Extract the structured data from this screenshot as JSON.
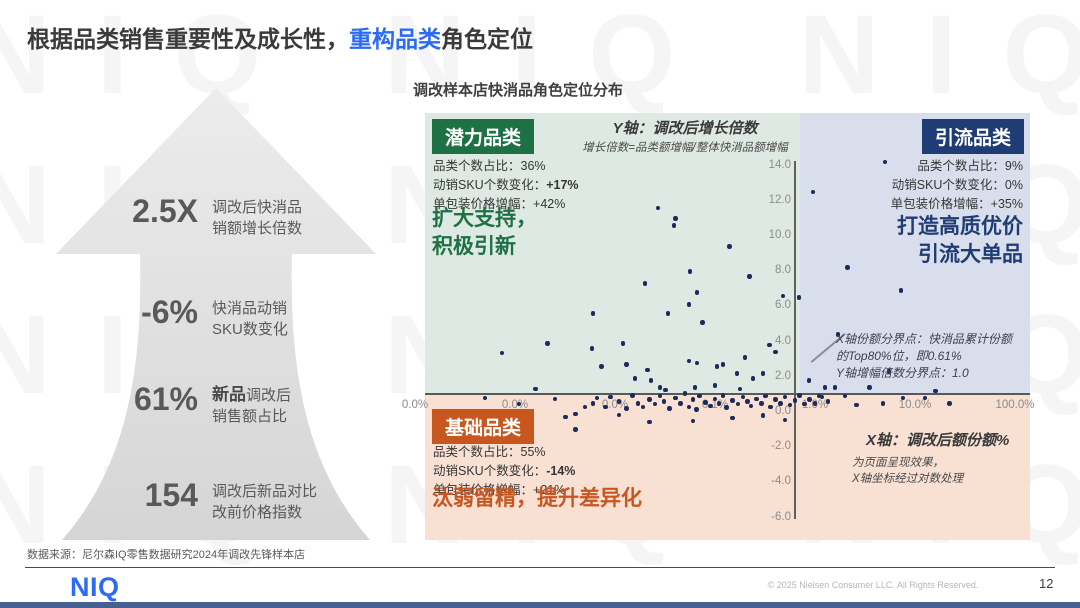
{
  "title": {
    "prefix": "根据品类销售重要性及成长性，",
    "highlight": "重构品类",
    "suffix": "角色定位"
  },
  "watermark_text": "NIQ",
  "accent_blue": "#2a6af5",
  "arrow": {
    "stats": [
      {
        "value": "2.5X",
        "line1_bold": "",
        "line1": "调改后快消品",
        "line2": "销额增长倍数"
      },
      {
        "value": "-6%",
        "line1_bold": "",
        "line1": "快消品动销",
        "line2": "SKU数变化"
      },
      {
        "value": "61%",
        "line1_bold": "新品",
        "line1": "调改后",
        "line2": "销售额占比"
      },
      {
        "value": "154",
        "line1_bold": "",
        "line1": "调改后新品对比",
        "line2": "改前价格指数"
      }
    ]
  },
  "chart": {
    "title": "调改样本店快消品角色定位分布",
    "y_axis_title": "Y轴：调改后增长倍数",
    "y_axis_subtitle": "增长倍数=品类额增幅/整体快消品额增幅",
    "x_axis_title": "X轴：调改后额份额%",
    "x_axis_note_lines": [
      "为页面呈现效果，",
      "X轴坐标经过对数处理"
    ],
    "annotation_lines": [
      "X轴份额分界点：快消品累计份额",
      "的Top80%位，即0.61%",
      "Y轴增幅倍数分界点：1.0"
    ],
    "quadrants": {
      "potential": {
        "name": "潜力品类",
        "color": "#1e7145",
        "stats": [
          {
            "label": "品类个数占比：",
            "value": "36%",
            "bold": false
          },
          {
            "label": "动销SKU个数变化：",
            "value": "+17%",
            "bold": true
          },
          {
            "label": "单包装价格增幅：",
            "value": "+42%",
            "bold": false
          }
        ],
        "statement_lines": [
          "扩大支持，",
          "积极引新"
        ]
      },
      "traffic": {
        "name": "引流品类",
        "color": "#1f3d74",
        "stats": [
          {
            "label": "品类个数占比：",
            "value": "9%",
            "bold": false
          },
          {
            "label": "动销SKU个数变化：",
            "value": "0%",
            "bold": false
          },
          {
            "label": "单包装价格增幅：",
            "value": "+35%",
            "bold": false
          }
        ],
        "statement_lines": [
          "打造高质优价",
          "引流大单品"
        ]
      },
      "basic": {
        "name": "基础品类",
        "color": "#c8571f",
        "stats": [
          {
            "label": "品类个数占比：",
            "value": "55%",
            "bold": false
          },
          {
            "label": "动销SKU个数变化：",
            "value": "-14%",
            "bold": true
          },
          {
            "label": "单包装价格增幅：",
            "value": "+21%",
            "bold": false
          }
        ],
        "statement_lines": [
          "汰弱留精，提升差异化"
        ]
      }
    }
  },
  "chart_data": {
    "type": "scatter",
    "title": "调改样本店快消品角色定位分布",
    "x_axis_label": "X轴：调改后额份额%",
    "y_axis_label": "Y轴：调改后增长倍数",
    "x_scale": "log",
    "x_range_pct": [
      0.0001,
      100
    ],
    "y_range": [
      -6,
      14
    ],
    "x_tick_labels": [
      "0.0%",
      "0.0%",
      "0.0%",
      "0.1%",
      "1.0%",
      "10.0%",
      "100.0%"
    ],
    "y_ticks": [
      14,
      12,
      10,
      8,
      6,
      4,
      2,
      0,
      -2,
      -4,
      -6
    ],
    "dividers": {
      "x_pct": 0.61,
      "y": 1.0
    },
    "dot_color": "#1b2b5c",
    "points": [
      [
        0.027,
        11.6
      ],
      [
        0.04,
        11.0
      ],
      [
        0.039,
        10.6
      ],
      [
        0.14,
        9.4
      ],
      [
        0.056,
        8.0
      ],
      [
        0.02,
        7.3
      ],
      [
        0.22,
        7.7
      ],
      [
        0.066,
        6.8
      ],
      [
        0.48,
        6.6
      ],
      [
        0.69,
        6.5
      ],
      [
        0.055,
        6.1
      ],
      [
        0.006,
        5.6
      ],
      [
        0.034,
        5.6
      ],
      [
        0.075,
        5.1
      ],
      [
        0.35,
        3.8
      ],
      [
        0.4,
        3.4
      ],
      [
        0.012,
        3.9
      ],
      [
        0.0059,
        3.6
      ],
      [
        0.2,
        3.1
      ],
      [
        0.055,
        2.9
      ],
      [
        0.066,
        2.8
      ],
      [
        0.0073,
        2.6
      ],
      [
        0.013,
        2.7
      ],
      [
        0.104,
        2.6
      ],
      [
        0.12,
        2.7
      ],
      [
        0.021,
        2.4
      ],
      [
        0.166,
        2.2
      ],
      [
        0.0158,
        1.9
      ],
      [
        0.023,
        1.8
      ],
      [
        0.3,
        2.2
      ],
      [
        0.24,
        1.9
      ],
      [
        0.028,
        1.4
      ],
      [
        0.032,
        1.25
      ],
      [
        0.063,
        1.4
      ],
      [
        0.1,
        1.5
      ],
      [
        0.178,
        1.3
      ],
      [
        0.00074,
        3.35
      ],
      [
        0.0021,
        3.9
      ],
      [
        0.0016,
        1.3
      ],
      [
        0.0025,
        0.74
      ],
      [
        0.0066,
        0.8
      ],
      [
        0.005,
        0.28
      ],
      [
        0.0032,
        -0.28
      ],
      [
        0.004,
        -0.11
      ],
      [
        0.0011,
        0.45
      ],
      [
        0.0005,
        0.8
      ],
      [
        0.95,
        12.5
      ],
      [
        5.0,
        14.2
      ],
      [
        2.1,
        8.2
      ],
      [
        7.2,
        6.9
      ],
      [
        1.7,
        4.4
      ],
      [
        0.87,
        1.8
      ],
      [
        1.26,
        1.4
      ],
      [
        1.58,
        1.4
      ],
      [
        1.17,
        0.85
      ],
      [
        3.5,
        1.4
      ],
      [
        4.8,
        0.5
      ],
      [
        7.6,
        0.8
      ],
      [
        12.6,
        0.8
      ],
      [
        5.5,
        2.3
      ],
      [
        16,
        1.2
      ],
      [
        22,
        0.5
      ],
      [
        0.022,
        -0.57
      ],
      [
        0.011,
        -0.17
      ],
      [
        0.004,
        -1.0
      ],
      [
        0.06,
        -0.5
      ],
      [
        0.15,
        -0.35
      ],
      [
        0.3,
        -0.2
      ],
      [
        0.5,
        -0.45
      ],
      [
        0.006,
        0.5
      ],
      [
        0.008,
        0.3
      ],
      [
        0.009,
        0.85
      ],
      [
        0.011,
        0.6
      ],
      [
        0.013,
        0.2
      ],
      [
        0.015,
        0.95
      ],
      [
        0.017,
        0.5
      ],
      [
        0.019,
        0.3
      ],
      [
        0.022,
        0.7
      ],
      [
        0.025,
        0.45
      ],
      [
        0.028,
        0.9
      ],
      [
        0.031,
        0.6
      ],
      [
        0.035,
        0.2
      ],
      [
        0.04,
        0.8
      ],
      [
        0.045,
        0.5
      ],
      [
        0.05,
        1.05
      ],
      [
        0.055,
        0.3
      ],
      [
        0.06,
        0.7
      ],
      [
        0.065,
        0.15
      ],
      [
        0.07,
        0.9
      ],
      [
        0.08,
        0.55
      ],
      [
        0.09,
        0.35
      ],
      [
        0.1,
        0.75
      ],
      [
        0.11,
        0.5
      ],
      [
        0.12,
        0.95
      ],
      [
        0.13,
        0.25
      ],
      [
        0.15,
        0.65
      ],
      [
        0.17,
        0.45
      ],
      [
        0.19,
        0.85
      ],
      [
        0.21,
        0.6
      ],
      [
        0.23,
        0.35
      ],
      [
        0.26,
        0.75
      ],
      [
        0.29,
        0.5
      ],
      [
        0.32,
        0.9
      ],
      [
        0.36,
        0.3
      ],
      [
        0.4,
        0.7
      ],
      [
        0.45,
        0.5
      ],
      [
        0.5,
        0.85
      ],
      [
        0.56,
        0.4
      ],
      [
        0.63,
        0.65
      ],
      [
        0.7,
        0.95
      ],
      [
        0.78,
        0.45
      ],
      [
        0.88,
        0.7
      ],
      [
        1.0,
        0.5
      ],
      [
        1.1,
        0.9
      ],
      [
        1.35,
        0.6
      ],
      [
        2.0,
        0.9
      ],
      [
        2.6,
        0.4
      ]
    ]
  },
  "footer": {
    "source": "数据来源：尼尔森IQ零售数据研究2024年调改先锋样本店",
    "logo": "NIQ",
    "copyright": "© 2025 Nielsen Consumer LLC. All Rights Reserved.",
    "page": "12"
  }
}
